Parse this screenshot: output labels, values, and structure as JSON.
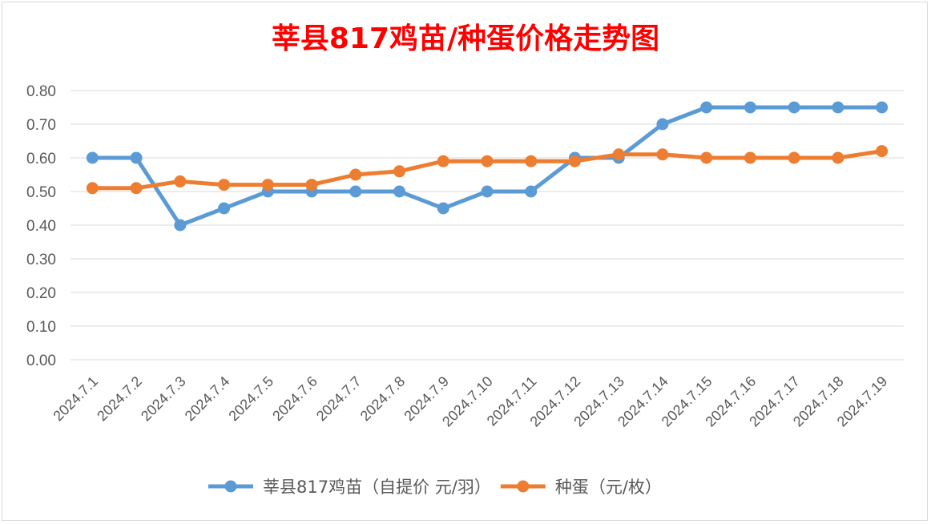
{
  "chart_data": {
    "type": "line",
    "title": "莘县817鸡苗/种蛋价格走势图",
    "title_color": "#ff0000",
    "categories": [
      "2024.7.1",
      "2024.7.2",
      "2024.7.3",
      "2024.7.4",
      "2024.7.5",
      "2024.7.6",
      "2024.7.7",
      "2024.7.8",
      "2024.7.9",
      "2024.7.10",
      "2024.7.11",
      "2024.7.12",
      "2024.7.13",
      "2024.7.14",
      "2024.7.15",
      "2024.7.16",
      "2024.7.17",
      "2024.7.18",
      "2024.7.19"
    ],
    "series": [
      {
        "name": "莘县817鸡苗（自提价 元/羽）",
        "color": "#5b9bd5",
        "values": [
          0.6,
          0.6,
          0.4,
          0.45,
          0.5,
          0.5,
          0.5,
          0.5,
          0.45,
          0.5,
          0.5,
          0.6,
          0.6,
          0.7,
          0.75,
          0.75,
          0.75,
          0.75,
          0.75
        ]
      },
      {
        "name": "种蛋（元/枚）",
        "color": "#ed7d31",
        "values": [
          0.51,
          0.51,
          0.53,
          0.52,
          0.52,
          0.52,
          0.55,
          0.56,
          0.59,
          0.59,
          0.59,
          0.59,
          0.61,
          0.61,
          0.6,
          0.6,
          0.6,
          0.6,
          0.62
        ]
      }
    ],
    "ylim": [
      0,
      0.8
    ],
    "yticks": [
      "0.00",
      "0.10",
      "0.20",
      "0.30",
      "0.40",
      "0.50",
      "0.60",
      "0.70",
      "0.80"
    ],
    "xlabel": "",
    "ylabel": "",
    "grid": true,
    "legend_position": "bottom"
  }
}
